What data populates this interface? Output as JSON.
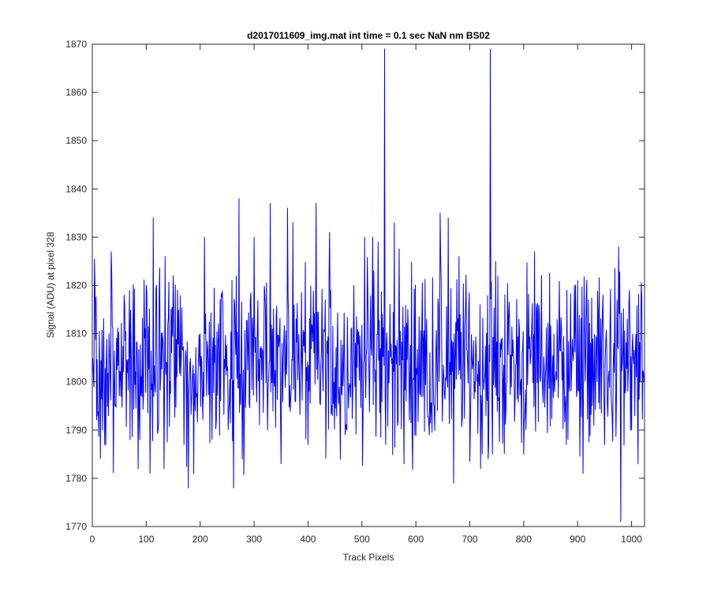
{
  "chart_data": {
    "type": "line",
    "title": "d2017011609_img.mat int time = 0.1 sec  NaN nm BS02",
    "xlabel": "Track Pixels",
    "ylabel": "Signal (ADU) at pixel 328",
    "xlim": [
      0,
      1024
    ],
    "ylim": [
      1770,
      1870
    ],
    "xticks": [
      0,
      100,
      200,
      300,
      400,
      500,
      600,
      700,
      800,
      900,
      1000
    ],
    "yticks": [
      1770,
      1780,
      1790,
      1800,
      1810,
      1820,
      1830,
      1840,
      1850,
      1860,
      1870
    ],
    "grid": false,
    "series": [
      {
        "color": "#0000ff",
        "baseline": 1804,
        "noise_amplitude": 9,
        "num_points": 1024,
        "x_start": 0,
        "points": [
          [
            0,
            1802
          ],
          [
            5,
            1820
          ],
          [
            10,
            1793
          ],
          [
            19,
            1790
          ],
          [
            23,
            1787
          ],
          [
            35,
            1827
          ],
          [
            60,
            1816
          ],
          [
            70,
            1788
          ],
          [
            88,
            1788
          ],
          [
            100,
            1820
          ],
          [
            113,
            1834
          ],
          [
            133,
            1782
          ],
          [
            135,
            1826
          ],
          [
            150,
            1822
          ],
          [
            170,
            1787
          ],
          [
            178,
            1778
          ],
          [
            188,
            1781
          ],
          [
            208,
            1830
          ],
          [
            230,
            1792
          ],
          [
            262,
            1778
          ],
          [
            272,
            1838
          ],
          [
            278,
            1784
          ],
          [
            300,
            1830
          ],
          [
            325,
            1790
          ],
          [
            330,
            1837
          ],
          [
            350,
            1783
          ],
          [
            362,
            1836
          ],
          [
            372,
            1833
          ],
          [
            400,
            1787
          ],
          [
            415,
            1837
          ],
          [
            440,
            1831
          ],
          [
            460,
            1784
          ],
          [
            485,
            1820
          ],
          [
            505,
            1830
          ],
          [
            520,
            1830
          ],
          [
            530,
            1829
          ],
          [
            542,
            1869
          ],
          [
            544,
            1787
          ],
          [
            560,
            1833
          ],
          [
            578,
            1783
          ],
          [
            625,
            1789
          ],
          [
            645,
            1835
          ],
          [
            660,
            1834
          ],
          [
            670,
            1779
          ],
          [
            680,
            1826
          ],
          [
            720,
            1782
          ],
          [
            738,
            1869
          ],
          [
            742,
            1785
          ],
          [
            800,
            1785
          ],
          [
            820,
            1827
          ],
          [
            880,
            1819
          ],
          [
            900,
            1821
          ],
          [
            910,
            1781
          ],
          [
            950,
            1787
          ],
          [
            976,
            1828
          ],
          [
            980,
            1771
          ],
          [
            996,
            1819
          ],
          [
            1000,
            1790
          ],
          [
            1012,
            1783
          ],
          [
            1023,
            1800
          ]
        ]
      }
    ]
  }
}
